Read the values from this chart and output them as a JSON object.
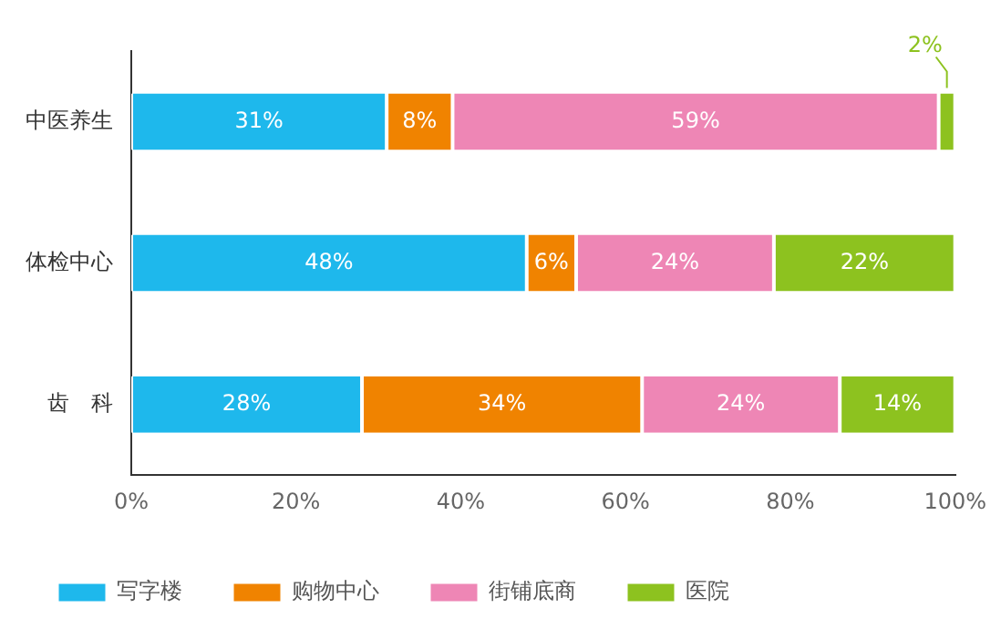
{
  "chart_data": {
    "type": "bar",
    "orientation": "horizontal",
    "stacked": true,
    "categories": [
      "中医养生",
      "体检中心",
      "齿　科"
    ],
    "series": [
      {
        "name": "写字楼",
        "color": "#1eb8ec",
        "values": [
          31,
          48,
          28
        ],
        "value_labels": [
          "31%",
          "48%",
          "28%"
        ]
      },
      {
        "name": "购物中心",
        "color": "#f08300",
        "values": [
          8,
          6,
          34
        ],
        "value_labels": [
          "8%",
          "6%",
          "34%"
        ]
      },
      {
        "name": "街铺底商",
        "color": "#ee86b5",
        "values": [
          59,
          24,
          24
        ],
        "value_labels": [
          "59%",
          "24%",
          "24%"
        ]
      },
      {
        "name": "医院",
        "color": "#8dc21f",
        "values": [
          2,
          22,
          14
        ],
        "value_labels": [
          "2%",
          "22%",
          "14%"
        ]
      }
    ],
    "xlim": [
      0,
      100
    ],
    "xticks": [
      {
        "value": 0,
        "label": "0%"
      },
      {
        "value": 20,
        "label": "20%"
      },
      {
        "value": 40,
        "label": "40%"
      },
      {
        "value": 60,
        "label": "60%"
      },
      {
        "value": 80,
        "label": "80%"
      },
      {
        "value": 100,
        "label": "100%"
      }
    ],
    "grid": false,
    "legend": "bottom"
  }
}
